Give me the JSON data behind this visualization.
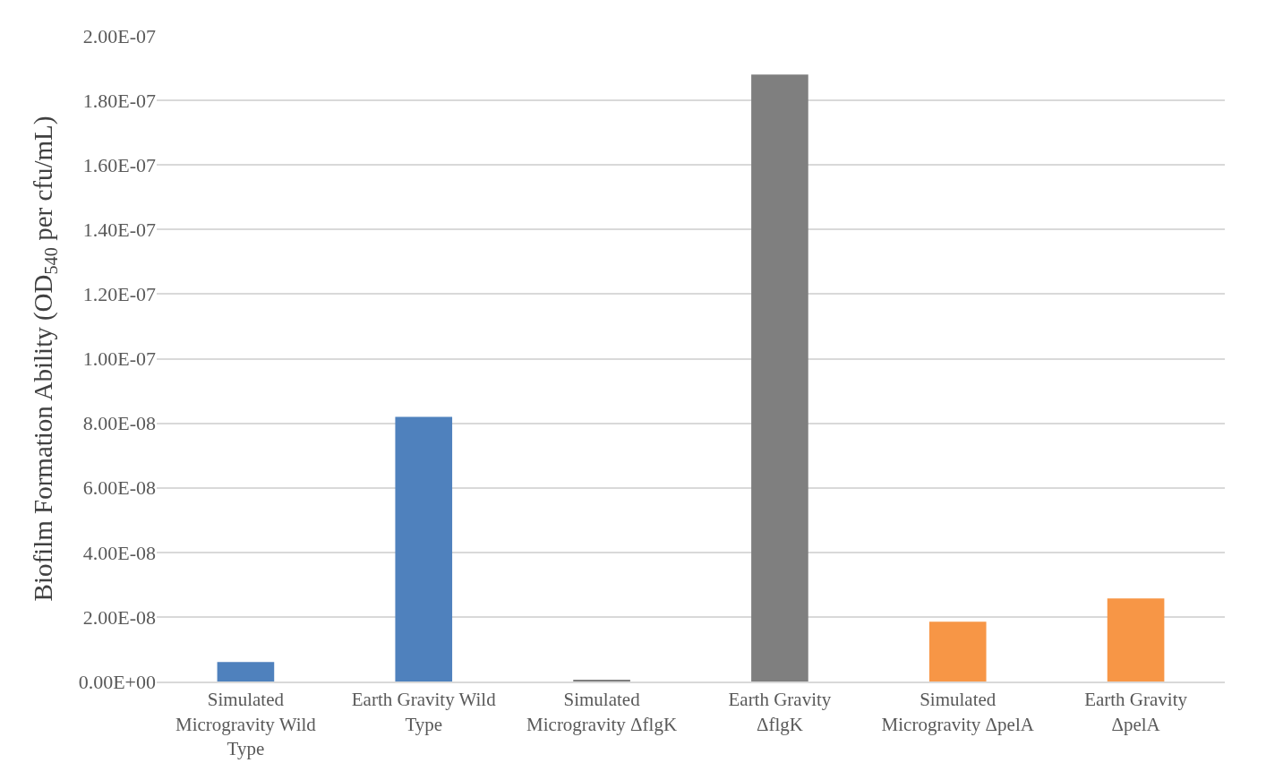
{
  "chart_data": {
    "type": "bar",
    "ylabel": "Biofilm Formation Ability (OD$_{540}$ per cfu/mL)",
    "categories": [
      "Simulated Microgravity Wild Type",
      "Earth Gravity Wild Type",
      "Simulated Microgravity ΔflgK",
      "Earth Gravity ΔflgK",
      "Simulated Microgravity ΔpelA",
      "Earth Gravity ΔpelA"
    ],
    "values": [
      6e-09,
      8.2e-08,
      5e-10,
      1.88e-07,
      1.85e-08,
      2.57e-08
    ],
    "colors": [
      "#4f81bd",
      "#4f81bd",
      "#7f7f7f",
      "#7f7f7f",
      "#f79646",
      "#f79646"
    ],
    "ylim": [
      0,
      2e-07
    ],
    "yticks": [
      {
        "value": 0,
        "label": "0.00E+00"
      },
      {
        "value": 2e-08,
        "label": "2.00E-08"
      },
      {
        "value": 4e-08,
        "label": "4.00E-08"
      },
      {
        "value": 6e-08,
        "label": "6.00E-08"
      },
      {
        "value": 8e-08,
        "label": "8.00E-08"
      },
      {
        "value": 1e-07,
        "label": "1.00E-07"
      },
      {
        "value": 1.2e-07,
        "label": "1.20E-07"
      },
      {
        "value": 1.4e-07,
        "label": "1.40E-07"
      },
      {
        "value": 1.6e-07,
        "label": "1.60E-07"
      },
      {
        "value": 1.8e-07,
        "label": "1.80E-07"
      },
      {
        "value": 2e-07,
        "label": "2.00E-07"
      }
    ],
    "grid": "y"
  }
}
